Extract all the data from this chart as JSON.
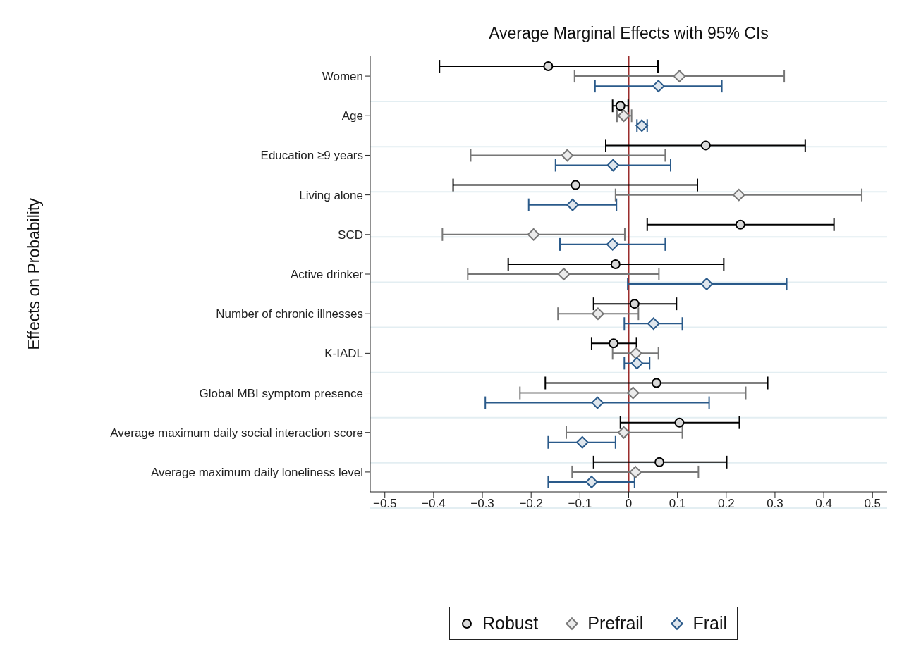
{
  "chart_data": {
    "type": "scatter",
    "title": "Average Marginal Effects with 95% CIs",
    "ylabel": "Effects on Probability",
    "orientation": "horizontal",
    "categories": [
      "Women",
      "Age",
      "Education ≥9 years",
      "Living alone",
      "SCD",
      "Active drinker",
      "Number of chronic illnesses",
      "K-IADL",
      "Global MBI symptom presence",
      "Average maximum daily social interaction score",
      "Average maximum daily loneliness level"
    ],
    "xlim": [
      -0.53,
      0.53
    ],
    "xticks": [
      {
        "value": -0.5,
        "label": "−0.5"
      },
      {
        "value": -0.4,
        "label": "−0.4"
      },
      {
        "value": -0.3,
        "label": "−0.3"
      },
      {
        "value": -0.2,
        "label": "−0.2"
      },
      {
        "value": -0.1,
        "label": "−0.1"
      },
      0,
      0.1,
      0.2,
      0.3,
      0.4,
      0.5
    ],
    "grid": "y",
    "legend": "bottom",
    "ref_lines": [
      {
        "axis": "x",
        "value": 0,
        "color": "#9b2d2d"
      }
    ],
    "series": [
      {
        "name": "Robust",
        "color": "#000000",
        "marker": "circle",
        "values": [
          -0.165,
          -0.017,
          0.158,
          -0.109,
          0.229,
          -0.027,
          0.012,
          -0.031,
          0.057,
          0.104,
          0.063
        ],
        "errors": [
          [
            -0.388,
            0.06
          ],
          [
            -0.033,
            -0.001
          ],
          [
            -0.047,
            0.362
          ],
          [
            -0.36,
            0.141
          ],
          [
            0.038,
            0.421
          ],
          [
            -0.247,
            0.195
          ],
          [
            -0.072,
            0.098
          ],
          [
            -0.076,
            0.016
          ],
          [
            -0.171,
            0.285
          ],
          [
            -0.017,
            0.227
          ],
          [
            -0.072,
            0.201
          ]
        ]
      },
      {
        "name": "Prefrail",
        "color": "#777777",
        "marker": "diamond",
        "values": [
          0.104,
          -0.01,
          -0.126,
          0.226,
          -0.195,
          -0.133,
          -0.063,
          0.015,
          0.009,
          -0.01,
          0.014
        ],
        "errors": [
          [
            -0.111,
            0.319
          ],
          [
            -0.024,
            0.006
          ],
          [
            -0.324,
            0.075
          ],
          [
            -0.027,
            0.478
          ],
          [
            -0.382,
            -0.008
          ],
          [
            -0.33,
            0.062
          ],
          [
            -0.145,
            0.02
          ],
          [
            -0.033,
            0.061
          ],
          [
            -0.223,
            0.24
          ],
          [
            -0.128,
            0.11
          ],
          [
            -0.116,
            0.143
          ]
        ]
      },
      {
        "name": "Frail",
        "color": "#2a5a8a",
        "marker": "diamond",
        "values": [
          0.061,
          0.027,
          -0.032,
          -0.115,
          -0.033,
          0.16,
          0.051,
          0.017,
          -0.064,
          -0.095,
          -0.076
        ],
        "errors": [
          [
            -0.069,
            0.191
          ],
          [
            0.017,
            0.038
          ],
          [
            -0.15,
            0.086
          ],
          [
            -0.205,
            -0.025
          ],
          [
            -0.141,
            0.075
          ],
          [
            -0.002,
            0.324
          ],
          [
            -0.009,
            0.11
          ],
          [
            -0.009,
            0.043
          ],
          [
            -0.294,
            0.165
          ],
          [
            -0.165,
            -0.027
          ],
          [
            -0.165,
            0.012
          ]
        ]
      }
    ]
  }
}
